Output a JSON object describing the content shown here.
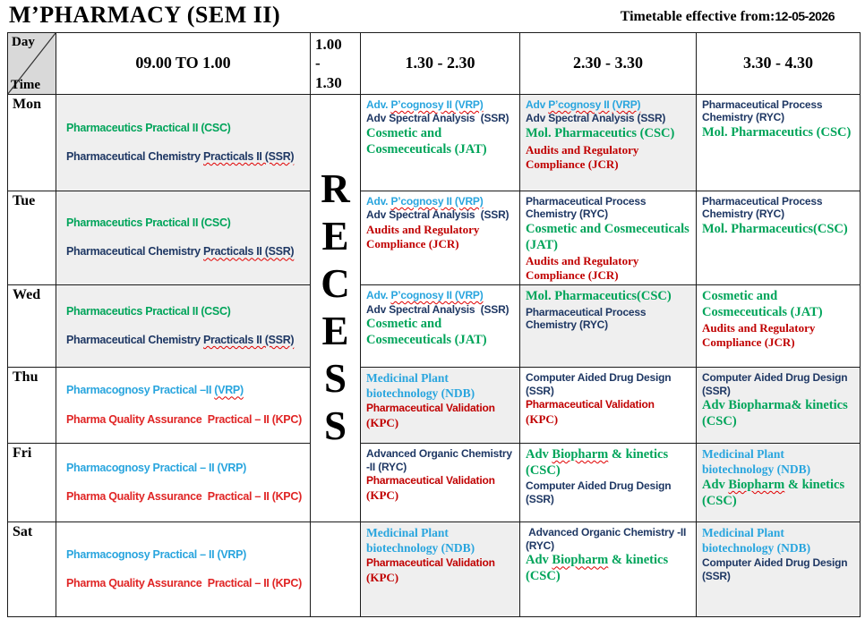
{
  "page": {
    "title": "M’PHARMACY (SEM II)",
    "effective_label": "Timetable effective from:",
    "effective_date": "12-05-2026"
  },
  "header": {
    "corner": {
      "day": "Day",
      "time": "Time"
    },
    "times": [
      "09.00 TO 1.00",
      "1.00 - 1.30",
      "1.30 - 2.30",
      "2.30 - 3.30",
      "3.30 - 4.30"
    ]
  },
  "recess": {
    "label": "RECESS",
    "letters": [
      "R",
      "E",
      "C",
      "E",
      "S",
      "S"
    ]
  },
  "colors": {
    "green": "#00a45a",
    "navy": "#1f3864",
    "cyan": "#29a5de",
    "red_dark": "#c00000",
    "red_bright": "#e02525",
    "shaded_cell": "#efefef",
    "corner_cell": "#d9d9d9",
    "border": "#1b1b1b"
  },
  "rows": [
    {
      "day": "Mon",
      "morning": {
        "shaded": true,
        "entries": [
          {
            "cls": "g-sans",
            "segments": [
              {
                "t": "Pharmaceutics Practical II (CSC)"
              }
            ]
          },
          {
            "cls": "n-sans",
            "segments": [
              {
                "t": "Pharmaceutical Chemistry "
              },
              {
                "t": "Practicals II (SSR)",
                "wavy": true
              }
            ]
          }
        ]
      },
      "slots": [
        {
          "shaded": false,
          "entries": [
            {
              "cls": "c-sans",
              "segments": [
                {
                  "t": "Adv. "
                },
                {
                  "t": "P’cognosy II (VRP)",
                  "wavy": true
                }
              ]
            },
            {
              "cls": "n-sans",
              "segments": [
                {
                  "t": "Adv Spectral Analysis  (SSR)"
                }
              ]
            },
            {
              "cls": "g-serif",
              "segments": [
                {
                  "t": "Cosmetic and Cosmeceuticals (JAT)"
                }
              ]
            }
          ]
        },
        {
          "shaded": true,
          "entries": [
            {
              "cls": "c-sans",
              "segments": [
                {
                  "t": "Adv "
                },
                {
                  "t": "P’cognosy II",
                  "wavy": true
                },
                {
                  "t": " "
                },
                {
                  "t": "(VRP)",
                  "wavy": true
                }
              ]
            },
            {
              "cls": "n-sans",
              "segments": [
                {
                  "t": "Adv Spectral Analysis (SSR)"
                }
              ]
            },
            {
              "cls": "g-serif",
              "segments": [
                {
                  "t": "Mol. Pharmaceutics (CSC)"
                }
              ]
            },
            {
              "cls": "r-serif",
              "segments": [
                {
                  "t": "Audits and Regulatory Compliance (JCR)"
                }
              ]
            }
          ]
        },
        {
          "shaded": false,
          "entries": [
            {
              "cls": "n-sans",
              "segments": [
                {
                  "t": "Pharmaceutical Process Chemistry (RYC)"
                }
              ]
            },
            {
              "cls": "g-serif",
              "segments": [
                {
                  "t": "Mol. Pharmaceutics (CSC)"
                }
              ]
            }
          ]
        }
      ]
    },
    {
      "day": "Tue",
      "morning": {
        "shaded": true,
        "entries": [
          {
            "cls": "g-sans",
            "segments": [
              {
                "t": "Pharmaceutics Practical II (CSC)"
              }
            ]
          },
          {
            "cls": "n-sans",
            "segments": [
              {
                "t": "Pharmaceutical Chemistry "
              },
              {
                "t": "Practicals II (SSR)",
                "wavy": true
              }
            ]
          }
        ]
      },
      "slots": [
        {
          "shaded": false,
          "entries": [
            {
              "cls": "c-sans",
              "segments": [
                {
                  "t": "Adv. "
                },
                {
                  "t": "P’cognosy II (VRP)",
                  "wavy": true
                }
              ]
            },
            {
              "cls": "n-sans",
              "segments": [
                {
                  "t": "Adv Spectral Analysis  (SSR)"
                }
              ]
            },
            {
              "cls": "r-serif",
              "segments": [
                {
                  "t": "Audits and Regulatory Compliance (JCR)"
                }
              ]
            }
          ]
        },
        {
          "shaded": false,
          "entries": [
            {
              "cls": "n-sans",
              "segments": [
                {
                  "t": "Pharmaceutical Process Chemistry (RYC)"
                }
              ]
            },
            {
              "cls": "g-serif",
              "segments": [
                {
                  "t": "Cosmetic and Cosmeceuticals (JAT)"
                }
              ]
            },
            {
              "cls": "r-serif",
              "segments": [
                {
                  "t": "Audits and Regulatory Compliance (JCR)"
                }
              ]
            }
          ]
        },
        {
          "shaded": false,
          "entries": [
            {
              "cls": "n-sans",
              "segments": [
                {
                  "t": "Pharmaceutical Process Chemistry (RYC)"
                }
              ]
            },
            {
              "cls": "g-serif",
              "segments": [
                {
                  "t": "Mol. Pharmaceutics(CSC)"
                }
              ]
            }
          ]
        }
      ]
    },
    {
      "day": "Wed",
      "morning": {
        "shaded": true,
        "entries": [
          {
            "cls": "g-sans",
            "segments": [
              {
                "t": "Pharmaceutics Practical II (CSC)"
              }
            ]
          },
          {
            "cls": "n-sans",
            "segments": [
              {
                "t": "Pharmaceutical Chemistry "
              },
              {
                "t": "Practicals II (SSR)",
                "wavy": true
              }
            ]
          }
        ]
      },
      "slots": [
        {
          "shaded": false,
          "entries": [
            {
              "cls": "c-sans",
              "segments": [
                {
                  "t": "Adv. "
                },
                {
                  "t": "P’cognosy II (VRP)",
                  "wavy": true
                }
              ]
            },
            {
              "cls": "n-sans",
              "segments": [
                {
                  "t": "Adv Spectral Analysis  (SSR)"
                }
              ]
            },
            {
              "cls": "g-serif",
              "segments": [
                {
                  "t": "Cosmetic and Cosmeceuticals (JAT)"
                }
              ]
            }
          ]
        },
        {
          "shaded": true,
          "entries": [
            {
              "cls": "g-serif",
              "segments": [
                {
                  "t": "Mol. Pharmaceutics(CSC)"
                }
              ]
            },
            {
              "cls": "n-sans",
              "segments": [
                {
                  "t": "Pharmaceutical Process Chemistry (RYC)"
                }
              ]
            }
          ]
        },
        {
          "shaded": false,
          "entries": [
            {
              "cls": "g-serif",
              "segments": [
                {
                  "t": "Cosmetic and Cosmeceuticals (JAT)"
                }
              ]
            },
            {
              "cls": "r-serif",
              "segments": [
                {
                  "t": "Audits and Regulatory Compliance (JCR)"
                }
              ]
            }
          ]
        }
      ]
    },
    {
      "day": "Thu",
      "morning": {
        "shaded": false,
        "entries": [
          {
            "cls": "c-sans",
            "segments": [
              {
                "t": "Pharmacognosy Practical –II "
              },
              {
                "t": "(VRP)",
                "wavy": true
              }
            ]
          },
          {
            "cls": "rb-sans",
            "segments": [
              {
                "t": "Pharma Quality Assurance  Practical – II (KPC)"
              }
            ]
          }
        ]
      },
      "slots": [
        {
          "shaded": true,
          "entries": [
            {
              "cls": "c-serif",
              "segments": [
                {
                  "t": "Medicinal Plant biotechnology (NDB)"
                }
              ]
            },
            {
              "cls": "r-sans",
              "segments": [
                {
                  "t": "Pharmaceutical Validation"
                }
              ]
            },
            {
              "cls": "r-serif",
              "segments": [
                {
                  "t": "(KPC)"
                }
              ]
            }
          ]
        },
        {
          "shaded": false,
          "entries": [
            {
              "cls": "n-sans",
              "segments": [
                {
                  "t": "Computer Aided Drug Design (SSR)"
                }
              ]
            },
            {
              "cls": "r-sans",
              "segments": [
                {
                  "t": "Pharmaceutical Validation"
                }
              ]
            },
            {
              "cls": "r-serif",
              "segments": [
                {
                  "t": "(KPC)"
                }
              ]
            }
          ]
        },
        {
          "shaded": true,
          "entries": [
            {
              "cls": "n-sans",
              "segments": [
                {
                  "t": "Computer Aided Drug Design (SSR)"
                }
              ]
            },
            {
              "cls": "g-serif",
              "segments": [
                {
                  "t": "Adv Biopharma& kinetics (CSC)"
                }
              ]
            }
          ]
        }
      ]
    },
    {
      "day": "Fri",
      "morning": {
        "shaded": false,
        "entries": [
          {
            "cls": "c-sans",
            "segments": [
              {
                "t": "Pharmacognosy Practical – II (VRP)"
              }
            ]
          },
          {
            "cls": "rb-sans",
            "segments": [
              {
                "t": "Pharma Quality Assurance  Practical – II (KPC)"
              }
            ]
          }
        ]
      },
      "slots": [
        {
          "shaded": false,
          "entries": [
            {
              "cls": "n-sans",
              "segments": [
                {
                  "t": "Advanced Organic Chemistry -II (RYC)"
                }
              ]
            },
            {
              "cls": "r-sans",
              "segments": [
                {
                  "t": "Pharmaceutical Validation"
                }
              ]
            },
            {
              "cls": "r-serif",
              "segments": [
                {
                  "t": "(KPC)"
                }
              ]
            }
          ]
        },
        {
          "shaded": false,
          "entries": [
            {
              "cls": "g-serif",
              "segments": [
                {
                  "t": "Adv "
                },
                {
                  "t": "Biopharm",
                  "wavy": true
                },
                {
                  "t": " & kinetics (CSC)"
                }
              ]
            },
            {
              "cls": "n-sans",
              "segments": [
                {
                  "t": "Computer Aided Drug Design (SSR)"
                }
              ]
            }
          ]
        },
        {
          "shaded": true,
          "entries": [
            {
              "cls": "c-serif",
              "segments": [
                {
                  "t": "Medicinal Plant biotechnology (NDB)"
                }
              ]
            },
            {
              "cls": "g-serif",
              "segments": [
                {
                  "t": "Adv "
                },
                {
                  "t": "Biopharm",
                  "wavy": true
                },
                {
                  "t": " & kinetics (CSC)"
                }
              ]
            }
          ]
        }
      ]
    },
    {
      "day": "Sat",
      "morning": {
        "shaded": false,
        "entries": [
          {
            "cls": "c-sans",
            "segments": [
              {
                "t": "Pharmacognosy Practical – II (VRP)"
              }
            ]
          },
          {
            "cls": "rb-sans",
            "segments": [
              {
                "t": "Pharma Quality Assurance  Practical – II (KPC)"
              }
            ]
          }
        ]
      },
      "slots": [
        {
          "shaded": true,
          "entries": [
            {
              "cls": "c-serif",
              "segments": [
                {
                  "t": "Medicinal Plant biotechnology (NDB)"
                }
              ]
            },
            {
              "cls": "r-sans",
              "segments": [
                {
                  "t": "Pharmaceutical Validation"
                }
              ]
            },
            {
              "cls": "r-serif",
              "segments": [
                {
                  "t": "(KPC)"
                }
              ]
            }
          ]
        },
        {
          "shaded": false,
          "entries": [
            {
              "cls": "n-sans",
              "segments": [
                {
                  "t": " Advanced Organic Chemistry -II (RYC)"
                }
              ]
            },
            {
              "cls": "g-serif",
              "segments": [
                {
                  "t": "Adv "
                },
                {
                  "t": "Biopharm",
                  "wavy": true
                },
                {
                  "t": " & kinetics (CSC)"
                }
              ]
            }
          ]
        },
        {
          "shaded": true,
          "entries": [
            {
              "cls": "c-serif",
              "segments": [
                {
                  "t": "Medicinal Plant biotechnology (NDB)"
                }
              ]
            },
            {
              "cls": "n-sans",
              "segments": [
                {
                  "t": "Computer Aided Drug Design (SSR)"
                }
              ]
            }
          ]
        }
      ]
    }
  ]
}
